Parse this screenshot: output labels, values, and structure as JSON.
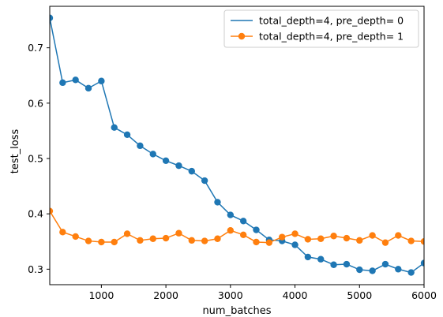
{
  "chart_data": {
    "type": "line",
    "xlabel": "num_batches",
    "ylabel": "test_loss",
    "xlim": [
      200,
      6000
    ],
    "ylim": [
      0.272,
      0.775
    ],
    "x_ticks": [
      1000,
      2000,
      3000,
      4000,
      5000,
      6000
    ],
    "y_ticks": [
      0.3,
      0.4,
      0.5,
      0.6,
      0.7
    ],
    "x_tick_labels": [
      "1000",
      "2000",
      "3000",
      "4000",
      "5000",
      "6000"
    ],
    "y_tick_labels": [
      "0.3",
      "0.4",
      "0.5",
      "0.6",
      "0.7"
    ],
    "legend_position": "top-right",
    "grid": false,
    "x": [
      200,
      400,
      600,
      800,
      1000,
      1200,
      1400,
      1600,
      1800,
      2000,
      2200,
      2400,
      2600,
      2800,
      3000,
      3200,
      3400,
      3600,
      3800,
      4000,
      4200,
      4400,
      4600,
      4800,
      5000,
      5200,
      5400,
      5600,
      5800,
      6000
    ],
    "series": [
      {
        "name": "total_depth=4, pre_depth= 0",
        "color": "#1f77b4",
        "values": [
          0.754,
          0.637,
          0.642,
          0.627,
          0.64,
          0.556,
          0.543,
          0.523,
          0.508,
          0.496,
          0.487,
          0.477,
          0.46,
          0.421,
          0.398,
          0.387,
          0.371,
          0.353,
          0.351,
          0.344,
          0.322,
          0.318,
          0.308,
          0.309,
          0.299,
          0.297,
          0.309,
          0.3,
          0.294,
          0.311
        ]
      },
      {
        "name": "total_depth=4, pre_depth= 1",
        "color": "#ff7f0e",
        "values": [
          0.405,
          0.367,
          0.359,
          0.351,
          0.349,
          0.349,
          0.364,
          0.352,
          0.355,
          0.356,
          0.365,
          0.352,
          0.351,
          0.355,
          0.37,
          0.362,
          0.349,
          0.348,
          0.358,
          0.364,
          0.354,
          0.355,
          0.36,
          0.356,
          0.352,
          0.361,
          0.348,
          0.361,
          0.351,
          0.35
        ]
      }
    ]
  }
}
